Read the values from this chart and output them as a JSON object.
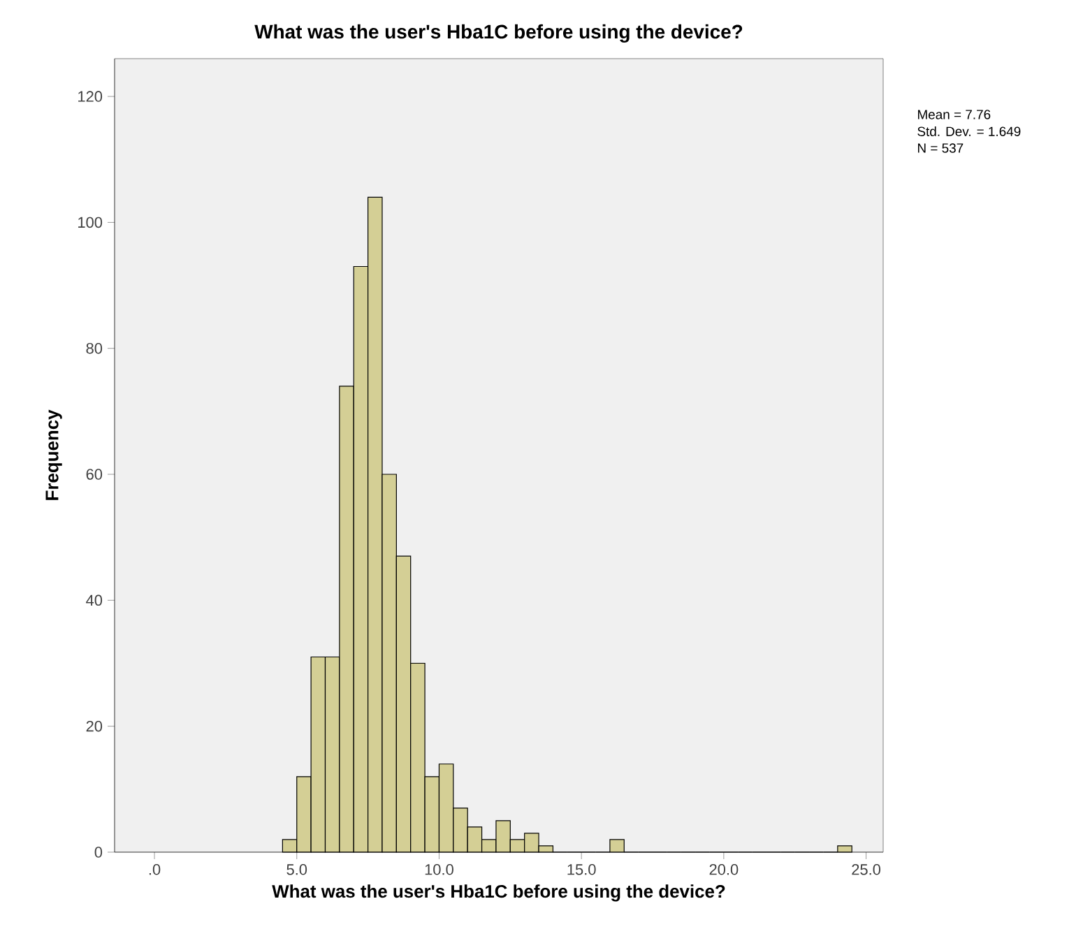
{
  "chart_data": {
    "type": "histogram",
    "title": "What was the user's Hba1C before using the device?",
    "xlabel": "What was the user's Hba1C before using the device?",
    "ylabel": "Frequency",
    "bins": [
      4.5,
      5.0,
      5.5,
      6.0,
      6.5,
      7.0,
      7.5,
      8.0,
      8.5,
      9.0,
      9.5,
      10.0,
      10.5,
      11.0,
      11.5,
      12.0,
      12.5,
      13.0,
      13.5,
      14.0,
      14.5,
      15.0,
      15.5,
      16.0,
      16.5,
      17.0,
      17.5,
      18.0,
      18.5,
      19.0,
      19.5,
      20.0,
      20.5,
      21.0,
      21.5,
      22.0,
      22.5,
      23.0,
      23.5,
      24.0,
      24.5
    ],
    "values": [
      2,
      12,
      31,
      31,
      74,
      93,
      104,
      60,
      47,
      30,
      12,
      14,
      7,
      4,
      2,
      5,
      2,
      3,
      1,
      0,
      0,
      0,
      0,
      2,
      0,
      0,
      0,
      0,
      0,
      0,
      0,
      0,
      0,
      0,
      0,
      0,
      0,
      0,
      0,
      1
    ],
    "color": "#d4cf95",
    "xlim": [
      -1.4,
      25.6
    ],
    "ylim": [
      0,
      126
    ],
    "xticks": [
      {
        "value": 0,
        "label": ".0"
      },
      {
        "value": 5,
        "label": "5.0"
      },
      {
        "value": 10,
        "label": "10.0"
      },
      {
        "value": 15,
        "label": "15.0"
      },
      {
        "value": 20,
        "label": "20.0"
      },
      {
        "value": 25,
        "label": "25.0"
      }
    ],
    "yticks": [
      0,
      20,
      40,
      60,
      80,
      100,
      120
    ],
    "annotations": [
      "Mean = 7.76",
      "Std. Dev. = 1.649",
      "N = 537"
    ]
  }
}
